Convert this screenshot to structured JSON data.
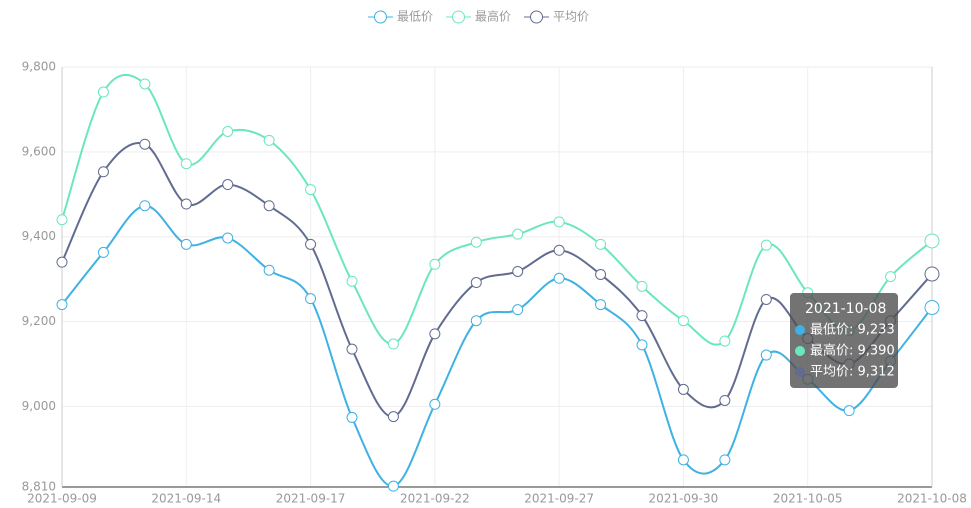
{
  "chart_data": {
    "type": "line",
    "categories": [
      "2021-09-09",
      null,
      null,
      "2021-09-14",
      null,
      null,
      "2021-09-17",
      null,
      null,
      "2021-09-22",
      null,
      null,
      "2021-09-27",
      null,
      null,
      "2021-09-30",
      null,
      null,
      "2021-10-05",
      null,
      null,
      "2021-10-08"
    ],
    "series": [
      {
        "name": "最低价",
        "color": "#3fb1e3",
        "values": [
          9240,
          9363,
          9473,
          9382,
          9397,
          9321,
          9254,
          8974,
          8812,
          9005,
          9202,
          9228,
          9302,
          9240,
          9145,
          8874,
          8874,
          9121,
          9064,
          8990,
          9107,
          9233
        ]
      },
      {
        "name": "最高价",
        "color": "#6be6c1",
        "values": [
          9440,
          9741,
          9760,
          9572,
          9648,
          9627,
          9511,
          9295,
          9147,
          9335,
          9387,
          9406,
          9435,
          9382,
          9283,
          9202,
          9154,
          9380,
          9268,
          9178,
          9306,
          9390
        ]
      },
      {
        "name": "平均价",
        "color": "#626c91",
        "values": [
          9340,
          9553,
          9618,
          9477,
          9523,
          9473,
          9382,
          9135,
          8976,
          9171,
          9292,
          9318,
          9368,
          9311,
          9214,
          9040,
          9014,
          9252,
          9160,
          9100,
          9202,
          9312
        ]
      }
    ],
    "ylim": [
      8810,
      9800
    ],
    "yticks": [
      {
        "value": 8810,
        "label": "8,810"
      },
      {
        "value": 9000,
        "label": "9,000"
      },
      {
        "value": 9200,
        "label": "9,200"
      },
      {
        "value": 9400,
        "label": "9,400"
      },
      {
        "value": 9600,
        "label": "9,600"
      },
      {
        "value": 9800,
        "label": "9,800"
      }
    ],
    "grid": true,
    "smooth": true,
    "legend": "top",
    "tooltip": {
      "title": "2021-10-08",
      "lines": [
        "最低价: 9,233",
        "最高价: 9,390",
        "平均价: 9,312"
      ]
    }
  }
}
